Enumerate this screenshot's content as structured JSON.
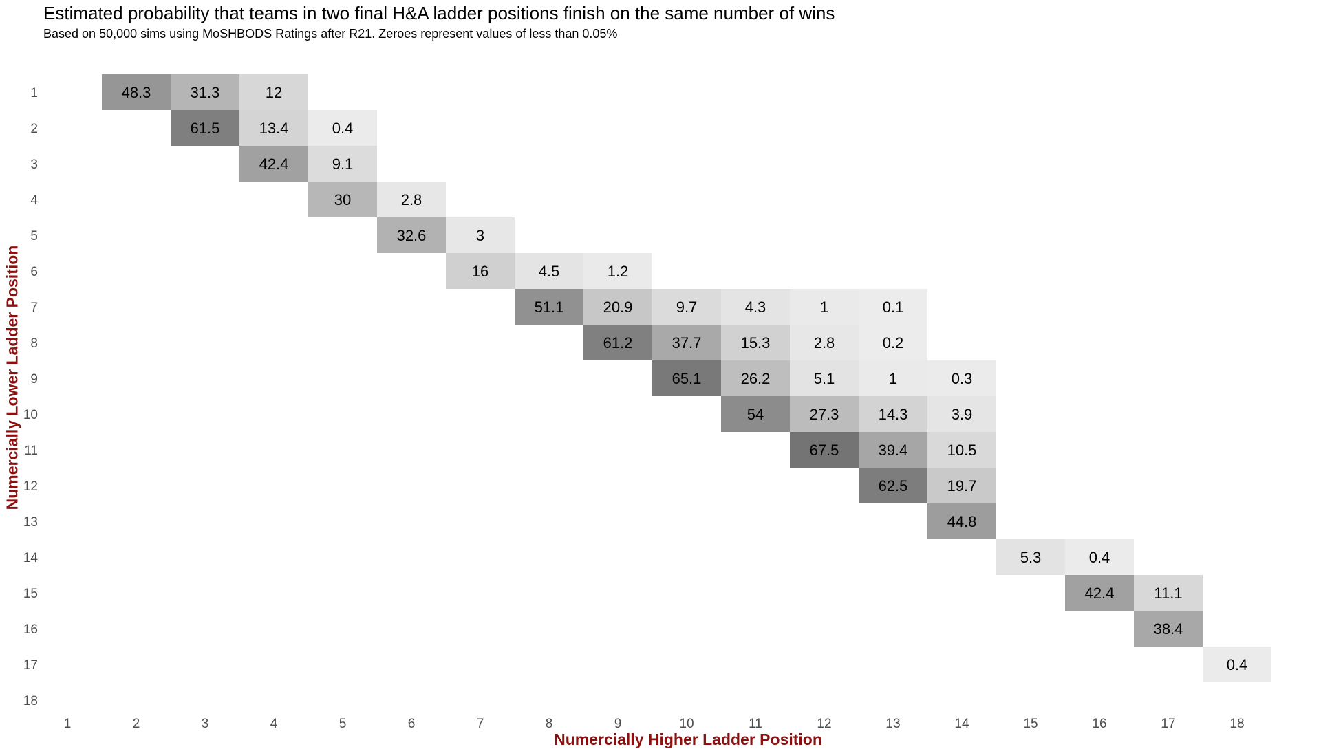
{
  "chart_data": {
    "type": "heatmap",
    "title": "Estimated probability that teams in two final H&A ladder positions finish on the same number of wins",
    "subtitle": "Based on 50,000 sims using MoSHBODS Ratings after R21. Zeroes represent values of less than 0.05%",
    "xlabel": "Numercially Higher Ladder Position",
    "ylabel": "Numercially Lower Ladder Position",
    "x_ticks": [
      "1",
      "2",
      "3",
      "4",
      "5",
      "6",
      "7",
      "8",
      "9",
      "10",
      "11",
      "12",
      "13",
      "14",
      "15",
      "16",
      "17",
      "18"
    ],
    "y_ticks": [
      "1",
      "2",
      "3",
      "4",
      "5",
      "6",
      "7",
      "8",
      "9",
      "10",
      "11",
      "12",
      "13",
      "14",
      "15",
      "16",
      "17",
      "18"
    ],
    "fill_scale": {
      "low": "#ececec",
      "high": "#707070",
      "min": 0,
      "max": 70
    },
    "grid": false,
    "legend": "none",
    "cells": [
      {
        "y": 1,
        "x": 2,
        "value": 48.3
      },
      {
        "y": 1,
        "x": 3,
        "value": 31.3
      },
      {
        "y": 1,
        "x": 4,
        "value": 12
      },
      {
        "y": 2,
        "x": 3,
        "value": 61.5
      },
      {
        "y": 2,
        "x": 4,
        "value": 13.4
      },
      {
        "y": 2,
        "x": 5,
        "value": 0.4
      },
      {
        "y": 3,
        "x": 4,
        "value": 42.4
      },
      {
        "y": 3,
        "x": 5,
        "value": 9.1
      },
      {
        "y": 4,
        "x": 5,
        "value": 30
      },
      {
        "y": 4,
        "x": 6,
        "value": 2.8
      },
      {
        "y": 5,
        "x": 6,
        "value": 32.6
      },
      {
        "y": 5,
        "x": 7,
        "value": 3
      },
      {
        "y": 6,
        "x": 7,
        "value": 16
      },
      {
        "y": 6,
        "x": 8,
        "value": 4.5
      },
      {
        "y": 6,
        "x": 9,
        "value": 1.2
      },
      {
        "y": 7,
        "x": 8,
        "value": 51.1
      },
      {
        "y": 7,
        "x": 9,
        "value": 20.9
      },
      {
        "y": 7,
        "x": 10,
        "value": 9.7
      },
      {
        "y": 7,
        "x": 11,
        "value": 4.3
      },
      {
        "y": 7,
        "x": 12,
        "value": 1
      },
      {
        "y": 7,
        "x": 13,
        "value": 0.1
      },
      {
        "y": 8,
        "x": 9,
        "value": 61.2
      },
      {
        "y": 8,
        "x": 10,
        "value": 37.7
      },
      {
        "y": 8,
        "x": 11,
        "value": 15.3
      },
      {
        "y": 8,
        "x": 12,
        "value": 2.8
      },
      {
        "y": 8,
        "x": 13,
        "value": 0.2
      },
      {
        "y": 9,
        "x": 10,
        "value": 65.1
      },
      {
        "y": 9,
        "x": 11,
        "value": 26.2
      },
      {
        "y": 9,
        "x": 12,
        "value": 5.1
      },
      {
        "y": 9,
        "x": 13,
        "value": 1
      },
      {
        "y": 9,
        "x": 14,
        "value": 0.3
      },
      {
        "y": 10,
        "x": 11,
        "value": 54
      },
      {
        "y": 10,
        "x": 12,
        "value": 27.3
      },
      {
        "y": 10,
        "x": 13,
        "value": 14.3
      },
      {
        "y": 10,
        "x": 14,
        "value": 3.9
      },
      {
        "y": 11,
        "x": 12,
        "value": 67.5
      },
      {
        "y": 11,
        "x": 13,
        "value": 39.4
      },
      {
        "y": 11,
        "x": 14,
        "value": 10.5
      },
      {
        "y": 12,
        "x": 13,
        "value": 62.5
      },
      {
        "y": 12,
        "x": 14,
        "value": 19.7
      },
      {
        "y": 13,
        "x": 14,
        "value": 44.8
      },
      {
        "y": 14,
        "x": 15,
        "value": 5.3
      },
      {
        "y": 14,
        "x": 16,
        "value": 0.4
      },
      {
        "y": 15,
        "x": 16,
        "value": 42.4
      },
      {
        "y": 15,
        "x": 17,
        "value": 11.1
      },
      {
        "y": 16,
        "x": 17,
        "value": 38.4
      },
      {
        "y": 17,
        "x": 18,
        "value": 0.4
      }
    ]
  }
}
